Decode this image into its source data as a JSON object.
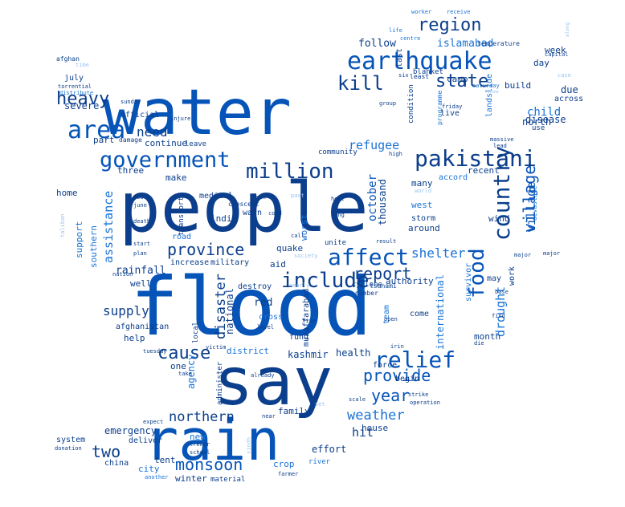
{
  "palette": {
    "background": "#ffffff",
    "navy": "#0b3e8c",
    "blue": "#0654b8",
    "mid": "#1a73d6",
    "light": "#5f9fe4",
    "pale": "#9bc3ef"
  },
  "words": [
    {
      "text": "water"
    },
    {
      "text": "people"
    },
    {
      "text": "flood"
    },
    {
      "text": "say"
    },
    {
      "text": "rain"
    },
    {
      "text": "earthquake"
    },
    {
      "text": "pakistani"
    },
    {
      "text": "area"
    },
    {
      "text": "government"
    },
    {
      "text": "million"
    },
    {
      "text": "country"
    },
    {
      "text": "food"
    },
    {
      "text": "province"
    },
    {
      "text": "affect"
    },
    {
      "text": "include"
    },
    {
      "text": "relief"
    },
    {
      "text": "report"
    },
    {
      "text": "cause"
    },
    {
      "text": "provide"
    },
    {
      "text": "monsoon"
    },
    {
      "text": "region"
    },
    {
      "text": "heavy"
    },
    {
      "text": "kill"
    },
    {
      "text": "state"
    },
    {
      "text": "year"
    },
    {
      "text": "weather"
    },
    {
      "text": "village"
    },
    {
      "text": "northern"
    },
    {
      "text": "refugee"
    },
    {
      "text": "need"
    },
    {
      "text": "shelter"
    },
    {
      "text": "two"
    },
    {
      "text": "hit"
    },
    {
      "text": "supply"
    },
    {
      "text": "disaster"
    },
    {
      "text": "assistance"
    },
    {
      "text": "october"
    },
    {
      "text": "drought"
    },
    {
      "text": "village"
    },
    {
      "text": "islamabad"
    },
    {
      "text": "follow"
    },
    {
      "text": "week"
    },
    {
      "text": "day"
    },
    {
      "text": "north"
    },
    {
      "text": "july"
    },
    {
      "text": "afghan"
    },
    {
      "text": "severe"
    },
    {
      "text": "official"
    },
    {
      "text": "continue"
    },
    {
      "text": "part"
    },
    {
      "text": "damage"
    },
    {
      "text": "leave"
    },
    {
      "text": "three"
    },
    {
      "text": "make"
    },
    {
      "text": "medical"
    },
    {
      "text": "home"
    },
    {
      "text": "support"
    },
    {
      "text": "southern"
    },
    {
      "text": "india"
    },
    {
      "text": "road"
    },
    {
      "text": "rainfall"
    },
    {
      "text": "well"
    },
    {
      "text": "help"
    },
    {
      "text": "one"
    },
    {
      "text": "district"
    },
    {
      "text": "kashmir"
    },
    {
      "text": "health"
    },
    {
      "text": "agency"
    },
    {
      "text": "national"
    },
    {
      "text": "red"
    },
    {
      "text": "cross"
    },
    {
      "text": "fund"
    },
    {
      "text": "family"
    },
    {
      "text": "emergency"
    },
    {
      "text": "new"
    },
    {
      "text": "tent"
    },
    {
      "text": "city"
    },
    {
      "text": "winter"
    },
    {
      "text": "material"
    },
    {
      "text": "crop"
    },
    {
      "text": "river"
    },
    {
      "text": "effort"
    },
    {
      "text": "house"
    },
    {
      "text": "international"
    },
    {
      "text": "month"
    },
    {
      "text": "come"
    },
    {
      "text": "team"
    },
    {
      "text": "force"
    },
    {
      "text": "begin"
    },
    {
      "text": "authority"
    },
    {
      "text": "survivor"
    },
    {
      "text": "work"
    },
    {
      "text": "may"
    },
    {
      "text": "storm"
    },
    {
      "text": "around"
    },
    {
      "text": "west"
    },
    {
      "text": "many"
    },
    {
      "text": "accord"
    },
    {
      "text": "recent"
    },
    {
      "text": "child"
    },
    {
      "text": "disease"
    },
    {
      "text": "use"
    },
    {
      "text": "due"
    },
    {
      "text": "across"
    },
    {
      "text": "build"
    },
    {
      "text": "camp"
    },
    {
      "text": "last"
    },
    {
      "text": "condition"
    },
    {
      "text": "programme"
    },
    {
      "text": "live"
    },
    {
      "text": "landslide"
    },
    {
      "text": "blanket"
    },
    {
      "text": "least"
    },
    {
      "text": "centre"
    },
    {
      "text": "life"
    },
    {
      "text": "temperature"
    },
    {
      "text": "worker"
    },
    {
      "text": "receive"
    },
    {
      "text": "along"
    },
    {
      "text": "capital"
    },
    {
      "text": "case"
    },
    {
      "text": "saturday"
    },
    {
      "text": "snow"
    },
    {
      "text": "friday"
    },
    {
      "text": "group"
    },
    {
      "text": "massive"
    },
    {
      "text": "lead"
    },
    {
      "text": "high"
    },
    {
      "text": "community"
    },
    {
      "text": "iran"
    },
    {
      "text": "past"
    },
    {
      "text": "crescent"
    },
    {
      "text": "worst"
    },
    {
      "text": "unite"
    },
    {
      "text": "thousand"
    },
    {
      "text": "world"
    },
    {
      "text": "heat"
    },
    {
      "text": "long"
    },
    {
      "text": "devastate"
    },
    {
      "text": "wind"
    },
    {
      "text": "warn"
    },
    {
      "text": "cold"
    },
    {
      "text": "quake"
    },
    {
      "text": "aid"
    },
    {
      "text": "society"
    },
    {
      "text": "military"
    },
    {
      "text": "increase"
    },
    {
      "text": "transport"
    },
    {
      "text": "destroy"
    },
    {
      "text": "nearly"
    },
    {
      "text": "cyclone"
    },
    {
      "text": "tsunami"
    },
    {
      "text": "number"
    },
    {
      "text": "muzaffarabad"
    },
    {
      "text": "local"
    },
    {
      "text": "level"
    },
    {
      "text": "five"
    },
    {
      "text": "afghanistan"
    },
    {
      "text": "victim"
    },
    {
      "text": "tuesday"
    },
    {
      "text": "take"
    },
    {
      "text": "already"
    },
    {
      "text": "administer"
    },
    {
      "text": "set"
    },
    {
      "text": "scale"
    },
    {
      "text": "strike"
    },
    {
      "text": "operation"
    },
    {
      "text": "expect"
    },
    {
      "text": "near"
    },
    {
      "text": "system"
    },
    {
      "text": "donation"
    },
    {
      "text": "deliver"
    },
    {
      "text": "tremor"
    },
    {
      "text": "school"
    },
    {
      "text": "sindh"
    },
    {
      "text": "china"
    },
    {
      "text": "another"
    },
    {
      "text": "farmer"
    },
    {
      "text": "result"
    },
    {
      "text": "call"
    },
    {
      "text": "major"
    },
    {
      "text": "base"
    },
    {
      "text": "find"
    },
    {
      "text": "die"
    },
    {
      "text": "irin"
    },
    {
      "text": "open"
    },
    {
      "text": "six"
    },
    {
      "text": "taliban"
    },
    {
      "text": "south"
    },
    {
      "text": "june"
    },
    {
      "text": "death"
    },
    {
      "text": "start"
    },
    {
      "text": "plan"
    },
    {
      "text": "nation"
    },
    {
      "text": "time"
    },
    {
      "text": "torrential"
    },
    {
      "text": "distribute"
    },
    {
      "text": "sunday"
    },
    {
      "text": "injure"
    },
    {
      "text": "major"
    }
  ]
}
